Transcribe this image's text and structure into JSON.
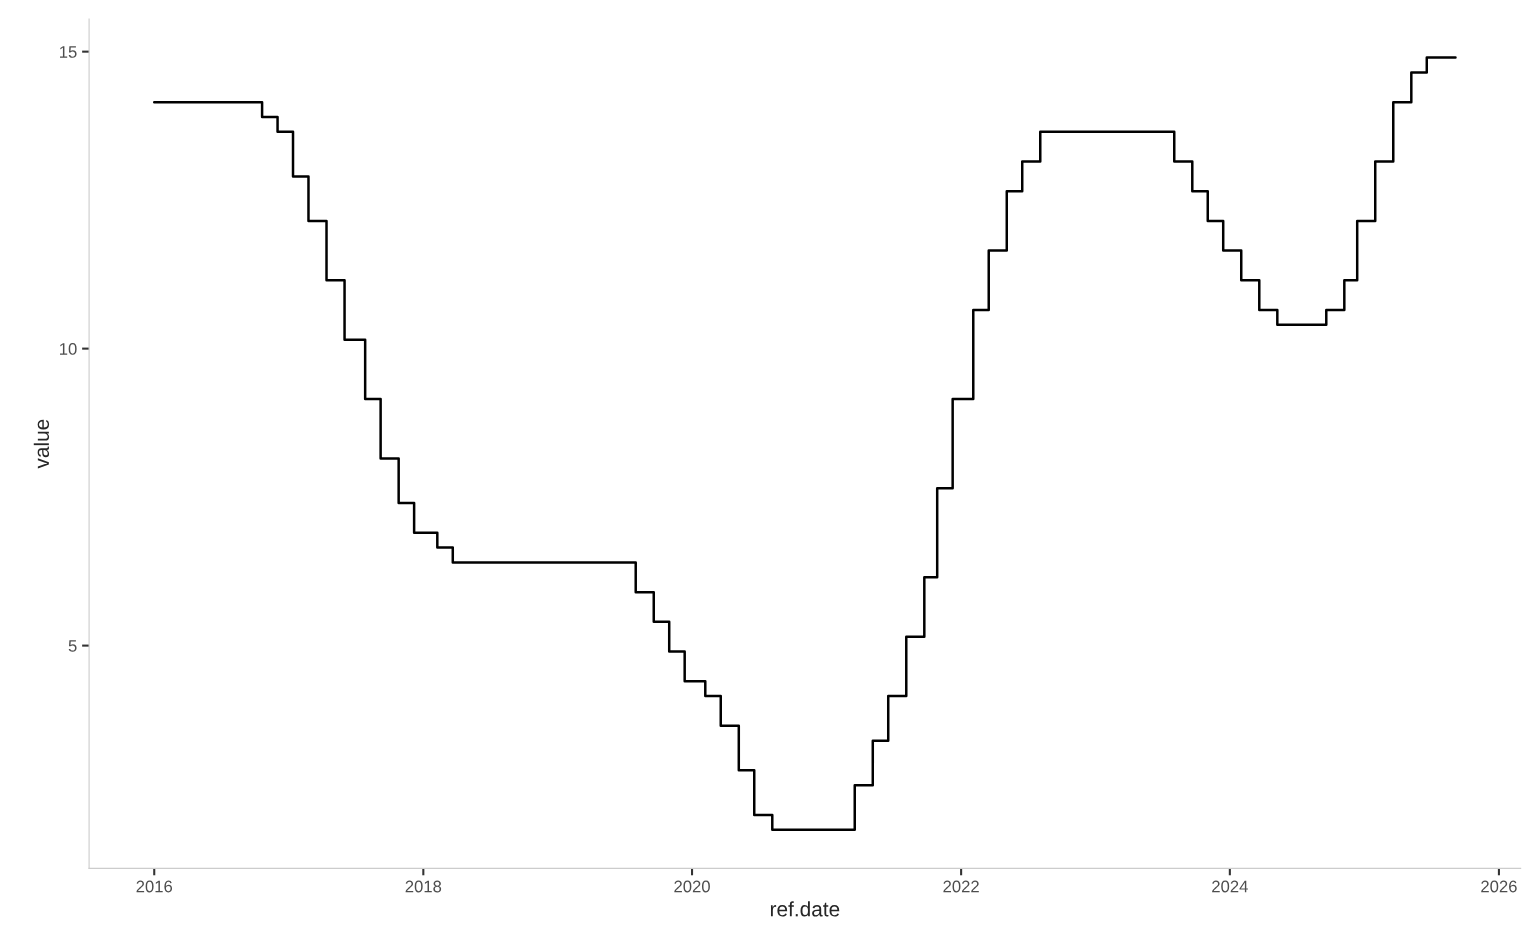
{
  "chart_data": {
    "type": "step",
    "xlabel": "ref.date",
    "ylabel": "value",
    "x": [
      "2016-01-01",
      "2016-10-20",
      "2016-12-01",
      "2017-01-12",
      "2017-02-23",
      "2017-04-13",
      "2017-06-01",
      "2017-07-27",
      "2017-09-07",
      "2017-10-26",
      "2017-12-07",
      "2018-02-08",
      "2018-03-22",
      "2019-08-01",
      "2019-09-19",
      "2019-10-31",
      "2019-12-12",
      "2020-02-06",
      "2020-03-19",
      "2020-05-07",
      "2020-06-18",
      "2020-08-06",
      "2021-03-18",
      "2021-05-06",
      "2021-06-17",
      "2021-08-05",
      "2021-09-23",
      "2021-10-28",
      "2021-12-09",
      "2022-02-03",
      "2022-03-17",
      "2022-05-05",
      "2022-06-16",
      "2022-08-04",
      "2023-08-03",
      "2023-09-21",
      "2023-11-02",
      "2023-12-14",
      "2024-02-01",
      "2024-03-21",
      "2024-05-09",
      "2024-09-19",
      "2024-11-07",
      "2024-12-12",
      "2025-01-30",
      "2025-03-20",
      "2025-05-08",
      "2025-06-19",
      "2025-09-05"
    ],
    "series": [
      {
        "color": "#000000",
        "values": [
          14.15,
          13.9,
          13.65,
          12.9,
          12.15,
          11.15,
          10.15,
          9.15,
          8.15,
          7.4,
          6.9,
          6.65,
          6.4,
          5.9,
          5.4,
          4.9,
          4.4,
          4.15,
          3.65,
          2.9,
          2.15,
          1.9,
          2.65,
          3.4,
          4.15,
          5.15,
          6.15,
          7.65,
          9.15,
          10.65,
          11.65,
          12.65,
          13.15,
          13.65,
          13.15,
          12.65,
          12.15,
          11.65,
          11.15,
          10.65,
          10.4,
          10.65,
          11.15,
          12.15,
          13.15,
          14.15,
          14.65,
          14.9,
          14.9
        ]
      }
    ],
    "xlim": [
      "2015-07-08",
      "2026-03-01"
    ],
    "ylim": [
      1.25,
      15.55
    ],
    "xticks": [
      "2016",
      "2018",
      "2020",
      "2022",
      "2024",
      "2026"
    ],
    "yticks": [
      5,
      10,
      15
    ],
    "grid": false,
    "legend": false
  }
}
